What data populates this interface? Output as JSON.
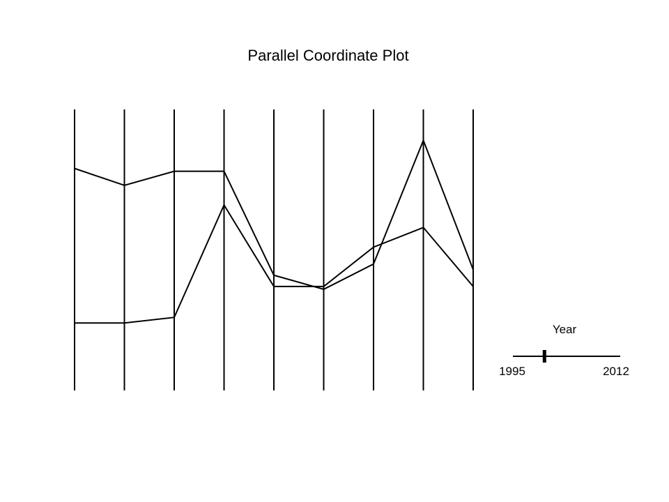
{
  "chart_data": {
    "type": "parallel-coordinates",
    "title": "Parallel Coordinate Plot",
    "axis_count": 9,
    "axis_range": [
      0,
      1
    ],
    "grid": false,
    "legend": "none",
    "series": [
      {
        "values": [
          0.79,
          0.73,
          0.78,
          0.78,
          0.41,
          0.36,
          0.45,
          0.89,
          0.43
        ]
      },
      {
        "values": [
          0.24,
          0.24,
          0.26,
          0.66,
          0.37,
          0.37,
          0.51,
          0.58,
          0.37
        ]
      }
    ],
    "slider": {
      "label": "Year",
      "min": 1995,
      "max": 2012,
      "min_label": "1995",
      "max_label": "2012",
      "value": 2000
    },
    "colors": {
      "line": "#000000",
      "background": "#ffffff"
    }
  }
}
